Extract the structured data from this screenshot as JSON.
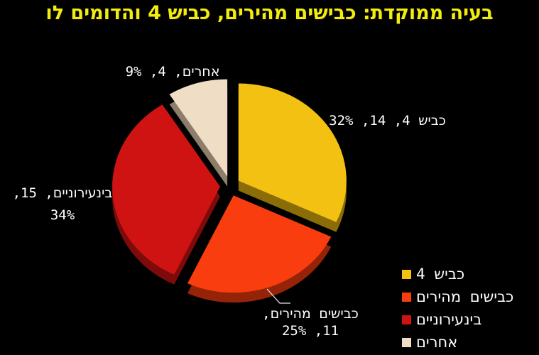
{
  "title": {
    "text": "בעיה ממוקדת: כבישים מהירים, כביש 4 והדומים לו",
    "color": "#F0EE0C"
  },
  "colors": {
    "background": "#000000",
    "label_text": "#FFFFFF",
    "leader_line": "#E8E8E8"
  },
  "chart_data": {
    "type": "pie",
    "title": "בעיה ממוקדת: כבישים מהירים, כביש 4 והדומים לו",
    "style": "3d-exploded",
    "direction": "clockwise",
    "start_angle_deg": 0,
    "total_value": 44,
    "legend_position": "bottom-right",
    "slices": [
      {
        "label": "כביש 4",
        "value": 14,
        "percent": 32,
        "color": "#F3C112",
        "side_color": "#8A6D08"
      },
      {
        "label": "כבישים מהירים",
        "value": 11,
        "percent": 25,
        "color": "#FA3D0F",
        "side_color": "#952307"
      },
      {
        "label": "בינעירוניים",
        "value": 15,
        "percent": 34,
        "color": "#CE1312",
        "side_color": "#7D0B0B"
      },
      {
        "label": "אחרים",
        "value": 4,
        "percent": 9,
        "color": "#F0DDC6",
        "side_color": "#8D7E6B"
      }
    ]
  },
  "data_labels": {
    "kvish4": "כביש 4, 14, 32%",
    "acherim": "אחרים, 4, 9%",
    "beinironiim_line1": "בינעירוניים, 15,",
    "beinironiim_line2": "34%",
    "mehirim_line1": "כבישים מהירים,",
    "mehirim_line2": "11, 25%"
  },
  "legend": {
    "items": [
      {
        "label": "כביש 4"
      },
      {
        "label": "כבישים מהירים"
      },
      {
        "label": "בינעירוניים"
      },
      {
        "label": "אחרים"
      }
    ]
  }
}
